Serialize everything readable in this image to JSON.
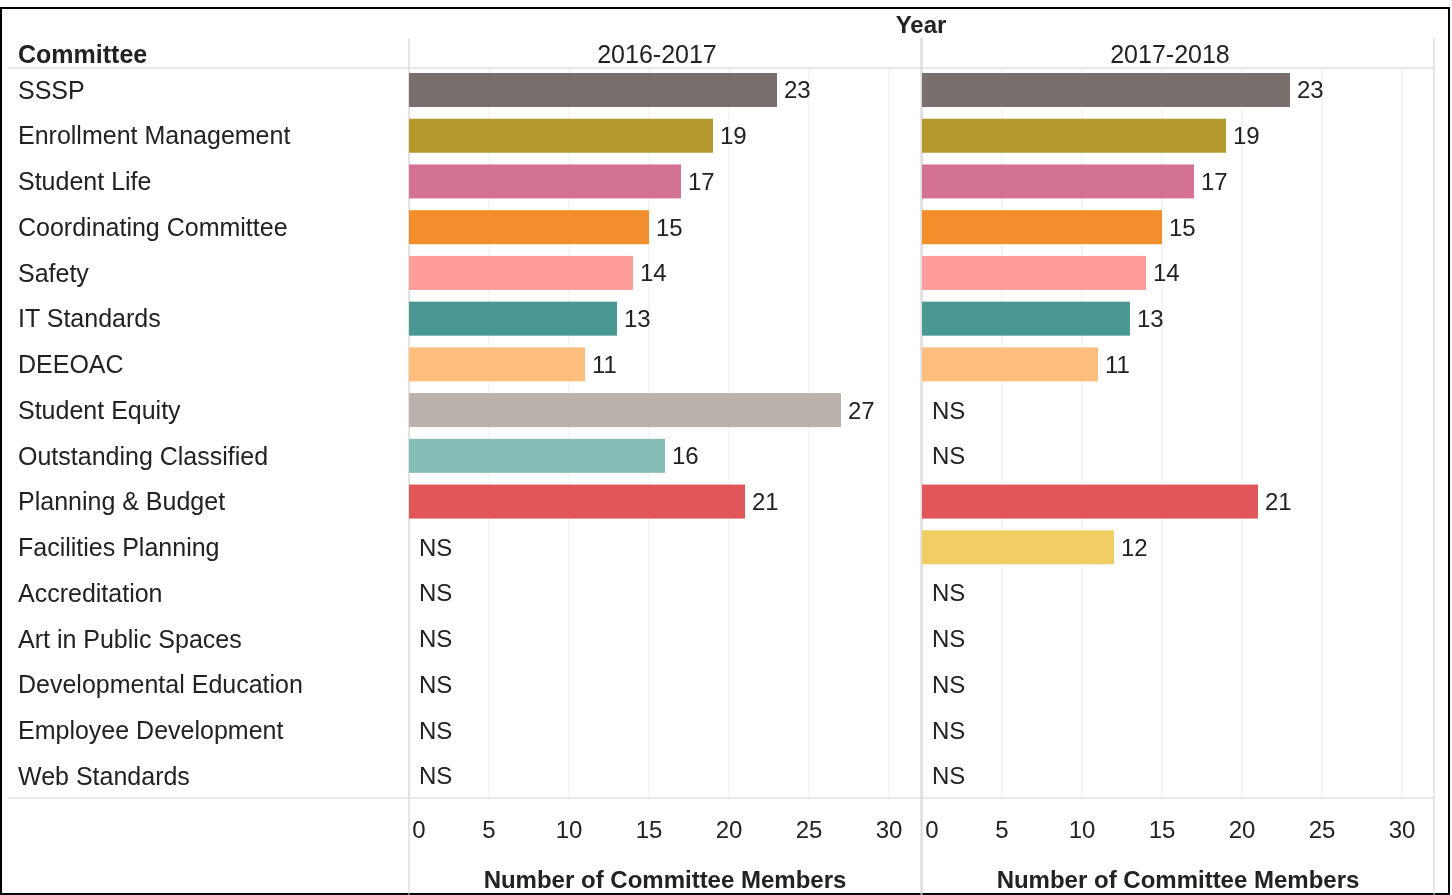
{
  "chart_data": [
    {
      "type": "bar",
      "orientation": "horizontal",
      "title": "2016-2017",
      "ylabel": "Committee",
      "xlabel": "Number of Committee Members",
      "annotations": [
        "Year"
      ],
      "categories": [
        "SSSP",
        "Enrollment Management",
        "Student Life",
        "Coordinating Committee",
        "Safety",
        "IT Standards",
        "DEEOAC",
        "Student Equity",
        "Outstanding Classified",
        "Planning & Budget",
        "Facilities Planning",
        "Accreditation",
        "Art in Public Spaces",
        "Developmental Education",
        "Employee Development",
        "Web Standards"
      ],
      "values": [
        23,
        19,
        17,
        15,
        14,
        13,
        11,
        27,
        16,
        21,
        null,
        null,
        null,
        null,
        null,
        null
      ],
      "value_labels": [
        "23",
        "19",
        "17",
        "15",
        "14",
        "13",
        "11",
        "27",
        "16",
        "21",
        "NS",
        "NS",
        "NS",
        "NS",
        "NS",
        "NS"
      ],
      "colors": [
        "#79706e",
        "#b6992d",
        "#d37295",
        "#f28e2b",
        "#ff9d9a",
        "#499894",
        "#ffbe7d",
        "#bab0ac",
        "#86bcb6",
        "#e15759",
        "#f1ce63",
        "#a0cbe8",
        "#8cd17d",
        "#9d7660",
        "#d4a6c8",
        "#fabfd2"
      ],
      "xlim": [
        0,
        32
      ],
      "xticks": [
        0,
        5,
        10,
        15,
        20,
        25,
        30
      ],
      "grid": "x"
    },
    {
      "type": "bar",
      "orientation": "horizontal",
      "title": "2017-2018",
      "xlabel": "Number of Committee Members",
      "tick_labels": "x",
      "categories": [
        null,
        null,
        null,
        null,
        null,
        null,
        null,
        null,
        null,
        null,
        null,
        null,
        null,
        null,
        null,
        null
      ],
      "values": [
        23,
        19,
        17,
        15,
        14,
        13,
        11,
        null,
        null,
        21,
        12,
        null,
        null,
        null,
        null,
        null
      ],
      "value_labels": [
        "23",
        "19",
        "17",
        "15",
        "14",
        "13",
        "11",
        "NS",
        "NS",
        "21",
        "12",
        "NS",
        "NS",
        "NS",
        "NS",
        "NS"
      ],
      "colors": [
        "#79706e",
        "#b6992d",
        "#d37295",
        "#f28e2b",
        "#ff9d9a",
        "#499894",
        "#ffbe7d",
        "#bab0ac",
        "#86bcb6",
        "#e15759",
        "#f1ce63",
        "#a0cbe8",
        "#8cd17d",
        "#9d7660",
        "#d4a6c8",
        "#fabfd2"
      ],
      "xlim": [
        0,
        32
      ],
      "xticks": [
        0,
        5,
        10,
        15,
        20,
        25,
        30
      ],
      "grid": "x"
    }
  ]
}
